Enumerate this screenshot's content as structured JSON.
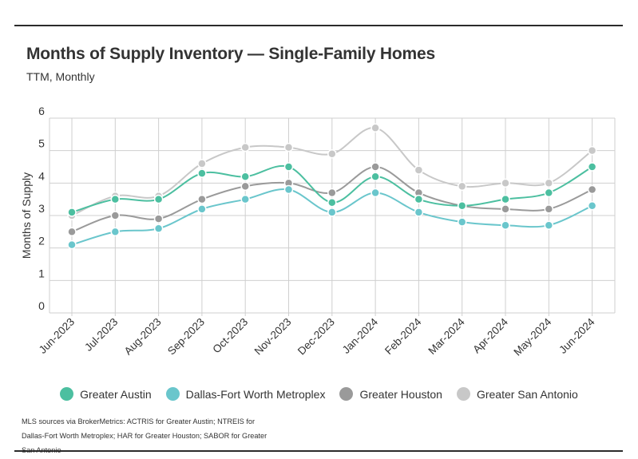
{
  "title": "Months of Supply Inventory — Single-Family Homes",
  "subtitle": "TTM, Monthly",
  "footnote": "MLS sources via BrokerMetrics: ACTRIS for Greater Austin; NTREIS for Dallas-Fort Worth Metroplex; HAR for Greater Houston; SABOR for Greater San Antonio",
  "chart_data": {
    "type": "line",
    "ylabel": "Months of Supply",
    "xlabel": "",
    "ylim": [
      0,
      6
    ],
    "yticks": [
      0,
      1,
      2,
      3,
      4,
      5,
      6
    ],
    "grid": true,
    "legend_position": "bottom",
    "categories": [
      "Jun-2023",
      "Jul-2023",
      "Aug-2023",
      "Sep-2023",
      "Oct-2023",
      "Nov-2023",
      "Dec-2023",
      "Jan-2024",
      "Feb-2024",
      "Mar-2024",
      "Apr-2024",
      "May-2024",
      "Jun-2024"
    ],
    "series": [
      {
        "name": "Greater Austin",
        "color": "#4cbfa0",
        "values": [
          3.1,
          3.5,
          3.5,
          4.3,
          4.2,
          4.5,
          3.4,
          4.2,
          3.5,
          3.3,
          3.5,
          3.7,
          4.5
        ]
      },
      {
        "name": "Dallas-Fort Worth Metroplex",
        "color": "#6ac6cc",
        "values": [
          2.1,
          2.5,
          2.6,
          3.2,
          3.5,
          3.8,
          3.1,
          3.7,
          3.1,
          2.8,
          2.7,
          2.7,
          3.3
        ]
      },
      {
        "name": "Greater Houston",
        "color": "#9a9a9a",
        "values": [
          2.5,
          3.0,
          2.9,
          3.5,
          3.9,
          4.0,
          3.7,
          4.5,
          3.7,
          3.3,
          3.2,
          3.2,
          3.8
        ]
      },
      {
        "name": "Greater San Antonio",
        "color": "#c8c8c8",
        "values": [
          3.0,
          3.6,
          3.6,
          4.6,
          5.1,
          5.1,
          4.9,
          5.7,
          4.4,
          3.9,
          4.0,
          4.0,
          5.0
        ]
      }
    ]
  }
}
